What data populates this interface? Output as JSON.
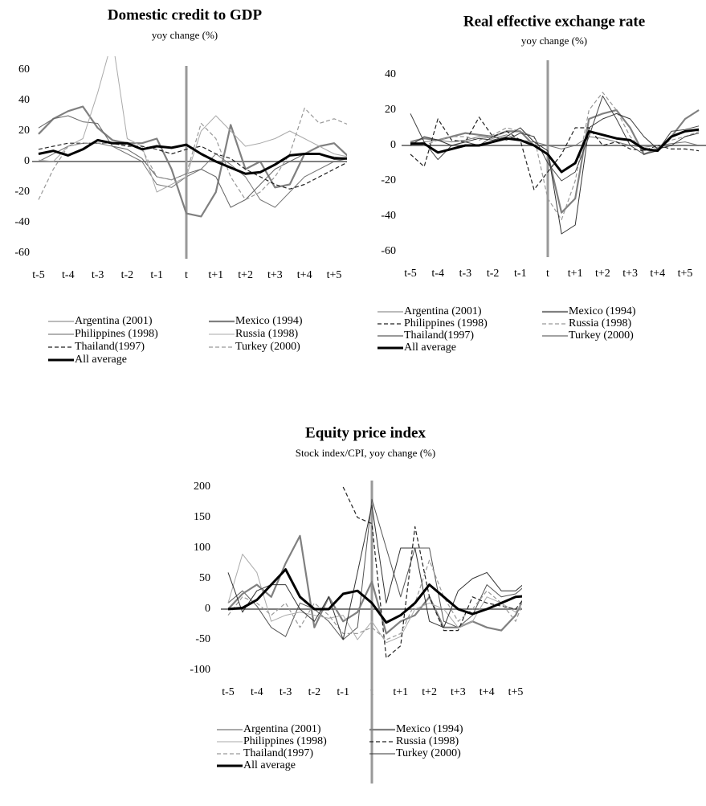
{
  "chart_data": [
    {
      "type": "line",
      "title": "Domestic credit to GDP",
      "subtitle": "yoy change (%)",
      "categories": [
        "t-5",
        null,
        "t-4",
        null,
        "t-3",
        null,
        "t-2",
        null,
        "t-1",
        null,
        "t",
        null,
        "t+1",
        null,
        "t+2",
        null,
        "t+3",
        null,
        "t+4",
        null,
        "t+5",
        null
      ],
      "ylim": [
        -60,
        60
      ],
      "yticks": [
        -60,
        -40,
        -20,
        0,
        20,
        40,
        60
      ],
      "series": [
        {
          "name": "Argentina (2001)",
          "color": "#777777",
          "dashed": false,
          "width": 1,
          "values": [
            0,
            5,
            10,
            12,
            12,
            10,
            5,
            0,
            -15,
            -17,
            -10,
            -5,
            5,
            -2,
            -10,
            -25,
            -30,
            -20,
            -10,
            -5,
            0,
            2
          ]
        },
        {
          "name": "Mexico (1994)",
          "color": "#808080",
          "dashed": false,
          "width": 2.2,
          "values": [
            18,
            28,
            33,
            36,
            22,
            14,
            12,
            12,
            15,
            -5,
            -34,
            -36,
            -20,
            24,
            -5,
            0,
            -17,
            -15,
            5,
            10,
            12,
            3
          ]
        },
        {
          "name": "Philippines  (1998)",
          "color": "#666666",
          "dashed": false,
          "width": 1,
          "values": [
            22,
            28,
            30,
            26,
            25,
            10,
            8,
            2,
            -10,
            -12,
            -8,
            -5,
            -10,
            -30,
            -25,
            -15,
            -5,
            0,
            5,
            5,
            3,
            2
          ]
        },
        {
          "name": "Russia (1998)",
          "color": "#aaaaaa",
          "dashed": false,
          "width": 1,
          "values": [
            1,
            0,
            10,
            15,
            45,
            80,
            15,
            10,
            -20,
            -15,
            -10,
            20,
            30,
            20,
            10,
            12,
            15,
            20,
            15,
            10,
            5,
            3
          ]
        },
        {
          "name": "Thailand(1997)",
          "color": "#222222",
          "dashed": true,
          "width": 1.2,
          "values": [
            8,
            10,
            12,
            12,
            12,
            12,
            10,
            10,
            8,
            5,
            8,
            10,
            5,
            2,
            -5,
            -10,
            -15,
            -18,
            -15,
            -10,
            -5,
            0
          ]
        },
        {
          "name": "Turkey (2000)",
          "color": "#999999",
          "dashed": true,
          "width": 1.2,
          "values": [
            -25,
            -5,
            10,
            12,
            12,
            12,
            11,
            8,
            -10,
            -12,
            -8,
            25,
            15,
            -10,
            -25,
            -20,
            -10,
            5,
            35,
            25,
            28,
            24
          ]
        },
        {
          "name": "All average",
          "color": "#000000",
          "dashed": false,
          "width": 3,
          "values": [
            5,
            7,
            4,
            8,
            14,
            12,
            12,
            8,
            10,
            9,
            11,
            5,
            0,
            -4,
            -8,
            -7,
            -2,
            4,
            5,
            5,
            2,
            2
          ]
        }
      ]
    },
    {
      "type": "line",
      "title": "Real effective exchange rate",
      "subtitle": "yoy change (%)",
      "categories": [
        "t-5",
        null,
        "t-4",
        null,
        "t-3",
        null,
        "t-2",
        null,
        "t-1",
        null,
        "t",
        null,
        "t+1",
        null,
        "t+2",
        null,
        "t+3",
        null,
        "t+4",
        null,
        "t+5",
        null
      ],
      "ylim": [
        -60,
        40
      ],
      "yticks": [
        -60,
        -40,
        -20,
        0,
        20,
        40
      ],
      "series": [
        {
          "name": "Argentina (2001)",
          "color": "#777777",
          "dashed": false,
          "width": 1,
          "values": [
            0,
            2,
            3,
            2,
            3,
            5,
            4,
            6,
            3,
            2,
            0,
            -2,
            0,
            5,
            4,
            2,
            0,
            -1,
            0,
            1,
            2,
            0
          ]
        },
        {
          "name": "Mexico (1994)",
          "color": "#808080",
          "dashed": false,
          "width": 2.2,
          "values": [
            2,
            4,
            3,
            5,
            7,
            6,
            5,
            8,
            8,
            0,
            -5,
            -38,
            -30,
            15,
            18,
            20,
            10,
            -5,
            -2,
            5,
            15,
            20
          ]
        },
        {
          "name": "Philippines  (1998)",
          "color": "#222222",
          "dashed": true,
          "width": 1.2,
          "values": [
            -5,
            -12,
            15,
            3,
            2,
            16,
            5,
            8,
            3,
            -25,
            -15,
            -5,
            10,
            10,
            0,
            2,
            -2,
            -3,
            0,
            -2,
            -2,
            -3
          ]
        },
        {
          "name": "Russia (1998)",
          "color": "#999999",
          "dashed": true,
          "width": 1.2,
          "values": [
            2,
            0,
            3,
            5,
            5,
            3,
            6,
            10,
            8,
            5,
            -30,
            -42,
            -20,
            20,
            30,
            20,
            5,
            -3,
            -1,
            3,
            5,
            8
          ]
        },
        {
          "name": "Thailand(1997)",
          "color": "#333333",
          "dashed": false,
          "width": 1,
          "values": [
            0,
            5,
            3,
            0,
            2,
            4,
            3,
            5,
            10,
            2,
            -3,
            -50,
            -45,
            10,
            15,
            18,
            15,
            5,
            -2,
            0,
            5,
            7
          ]
        },
        {
          "name": "Turkey (2000)",
          "color": "#444444",
          "dashed": false,
          "width": 1,
          "values": [
            18,
            2,
            -8,
            0,
            2,
            0,
            5,
            3,
            7,
            5,
            -10,
            -20,
            -15,
            5,
            28,
            15,
            0,
            -5,
            -3,
            8,
            9,
            11
          ]
        },
        {
          "name": "All average",
          "color": "#000000",
          "dashed": false,
          "width": 3,
          "values": [
            1,
            1,
            -4,
            -2,
            0,
            0,
            2,
            4,
            3,
            0,
            -5,
            -15,
            -10,
            8,
            6,
            4,
            3,
            -2,
            -3,
            5,
            8,
            9
          ]
        }
      ]
    },
    {
      "type": "line",
      "title": "Equity price index",
      "subtitle": "Stock index/CPI, yoy change (%)",
      "categories": [
        "t-5",
        null,
        "t-4",
        null,
        "t-3",
        null,
        "t-2",
        null,
        "t-1",
        null,
        "t",
        null,
        "t+1",
        null,
        "t+2",
        null,
        "t+3",
        null,
        "t+4",
        null,
        "t+5",
        null
      ],
      "ylim": [
        -100,
        200
      ],
      "yticks": [
        -100,
        -50,
        0,
        50,
        100,
        150,
        200
      ],
      "series": [
        {
          "name": "Argentina (2001)",
          "color": "#555555",
          "dashed": false,
          "width": 1,
          "values": [
            10,
            30,
            5,
            -30,
            -45,
            10,
            0,
            -20,
            -50,
            -30,
            180,
            100,
            20,
            100,
            100,
            -20,
            -30,
            -10,
            40,
            20,
            25,
            45
          ]
        },
        {
          "name": "Mexico (1994)",
          "color": "#808080",
          "dashed": false,
          "width": 2.2,
          "values": [
            0,
            25,
            40,
            20,
            75,
            120,
            -30,
            20,
            -20,
            -5,
            45,
            -40,
            -20,
            -10,
            20,
            -30,
            -30,
            -20,
            -30,
            -35,
            -10,
            40
          ]
        },
        {
          "name": "Philippines  (1998)",
          "color": "#aaaaaa",
          "dashed": false,
          "width": 1,
          "values": [
            10,
            90,
            60,
            -20,
            -10,
            -5,
            -10,
            -15,
            -10,
            -50,
            -20,
            -55,
            -45,
            0,
            10,
            0,
            -30,
            -20,
            20,
            10,
            -5,
            30
          ]
        },
        {
          "name": "Russia (1998)",
          "color": "#222222",
          "dashed": true,
          "width": 1.2,
          "values": [
            null,
            null,
            null,
            null,
            null,
            null,
            null,
            null,
            200,
            150,
            140,
            -80,
            -60,
            135,
            20,
            -35,
            -35,
            20,
            10,
            5,
            0,
            30
          ]
        },
        {
          "name": "Thailand(1997)",
          "color": "#999999",
          "dashed": true,
          "width": 1.2,
          "values": [
            -10,
            20,
            10,
            -10,
            10,
            -30,
            10,
            -10,
            -40,
            -40,
            -30,
            -50,
            -40,
            10,
            80,
            20,
            -20,
            0,
            30,
            10,
            -20,
            40
          ]
        },
        {
          "name": "Turkey (2000)",
          "color": "#333333",
          "dashed": false,
          "width": 1,
          "values": [
            60,
            -5,
            30,
            40,
            40,
            0,
            -20,
            20,
            -50,
            60,
            170,
            10,
            100,
            100,
            -20,
            -30,
            30,
            50,
            60,
            30,
            30,
            50
          ]
        },
        {
          "name": "All average",
          "color": "#000000",
          "dashed": false,
          "width": 3,
          "values": [
            0,
            2,
            15,
            40,
            65,
            20,
            0,
            0,
            25,
            30,
            10,
            -22,
            -10,
            10,
            40,
            20,
            0,
            -8,
            0,
            10,
            20,
            22
          ]
        }
      ]
    }
  ]
}
